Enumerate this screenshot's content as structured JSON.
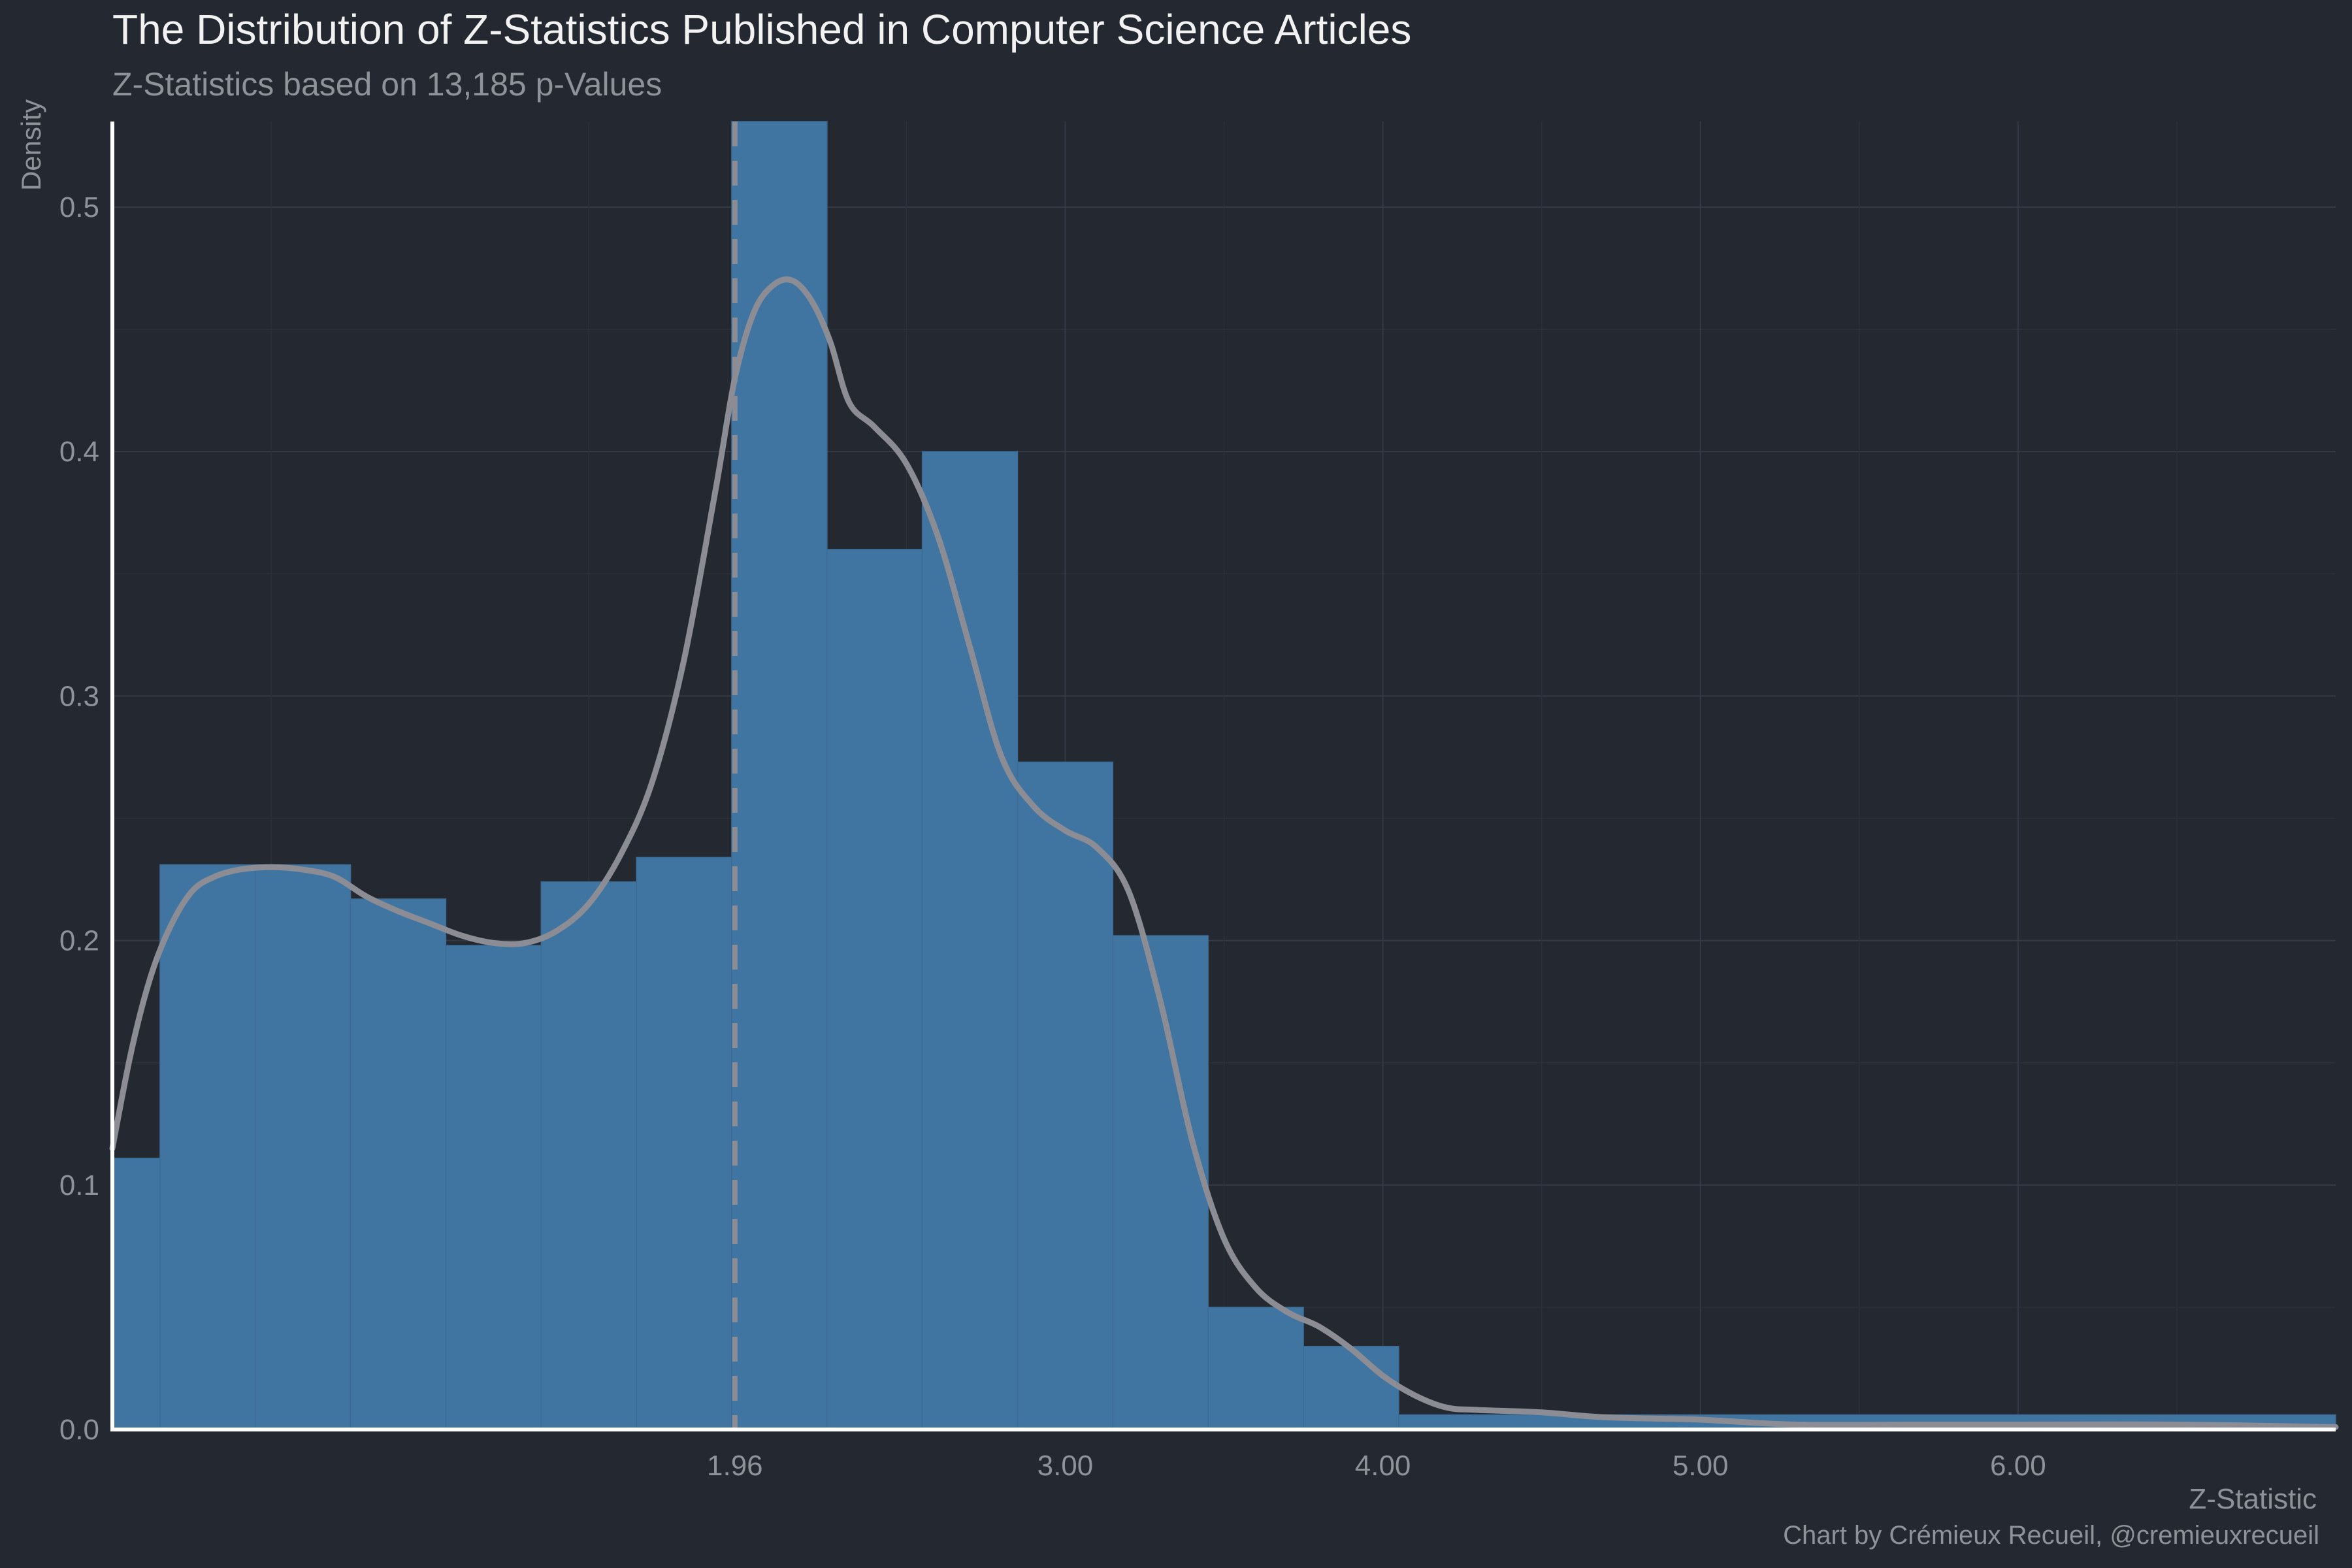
{
  "chart_data": {
    "type": "bar",
    "title": "The Distribution of Z-Statistics Published in Computer Science Articles",
    "subtitle": "Z-Statistics based on 13,185 p-Values",
    "xlabel": "Z-Statistic",
    "ylabel": "Density",
    "caption": "Chart by Crémieux Recueil, @cremieuxrecueil",
    "xlim": [
      0.0,
      7.0
    ],
    "ylim": [
      0.0,
      0.535
    ],
    "x_ticks": [
      {
        "value": 1.96,
        "label": "1.96"
      },
      {
        "value": 3.0,
        "label": "3.00"
      },
      {
        "value": 4.0,
        "label": "4.00"
      },
      {
        "value": 5.0,
        "label": "5.00"
      },
      {
        "value": 6.0,
        "label": "6.00"
      }
    ],
    "y_ticks": [
      {
        "value": 0.0,
        "label": "0.0"
      },
      {
        "value": 0.1,
        "label": "0.1"
      },
      {
        "value": 0.2,
        "label": "0.2"
      },
      {
        "value": 0.3,
        "label": "0.3"
      },
      {
        "value": 0.4,
        "label": "0.4"
      },
      {
        "value": 0.5,
        "label": "0.5"
      }
    ],
    "histogram": {
      "bins": [
        {
          "x0": 0.0,
          "x1": 0.15,
          "density": 0.111
        },
        {
          "x0": 0.15,
          "x1": 0.45,
          "density": 0.231
        },
        {
          "x0": 0.45,
          "x1": 0.75,
          "density": 0.231
        },
        {
          "x0": 0.75,
          "x1": 1.05,
          "density": 0.217
        },
        {
          "x0": 1.05,
          "x1": 1.35,
          "density": 0.198
        },
        {
          "x0": 1.35,
          "x1": 1.65,
          "density": 0.224
        },
        {
          "x0": 1.65,
          "x1": 1.95,
          "density": 0.234
        },
        {
          "x0": 1.95,
          "x1": 2.25,
          "density": 0.535
        },
        {
          "x0": 2.25,
          "x1": 2.55,
          "density": 0.36
        },
        {
          "x0": 2.55,
          "x1": 2.85,
          "density": 0.4
        },
        {
          "x0": 2.85,
          "x1": 3.15,
          "density": 0.273
        },
        {
          "x0": 3.15,
          "x1": 3.45,
          "density": 0.202
        },
        {
          "x0": 3.45,
          "x1": 3.75,
          "density": 0.05
        },
        {
          "x0": 3.75,
          "x1": 4.05,
          "density": 0.034
        },
        {
          "x0": 4.05,
          "x1": 7.0,
          "density": 0.006
        }
      ]
    },
    "density_curve": {
      "x": [
        0.0,
        0.06,
        0.12,
        0.18,
        0.25,
        0.32,
        0.4,
        0.5,
        0.6,
        0.7,
        0.8,
        0.9,
        1.0,
        1.1,
        1.2,
        1.3,
        1.4,
        1.5,
        1.6,
        1.7,
        1.8,
        1.9,
        1.96,
        2.02,
        2.08,
        2.14,
        2.2,
        2.26,
        2.32,
        2.4,
        2.5,
        2.6,
        2.7,
        2.8,
        2.9,
        3.0,
        3.1,
        3.2,
        3.3,
        3.4,
        3.5,
        3.6,
        3.7,
        3.8,
        3.9,
        4.0,
        4.1,
        4.2,
        4.3,
        4.5,
        4.7,
        5.0,
        5.3,
        5.7,
        6.0,
        6.5,
        7.0
      ],
      "y": [
        0.115,
        0.155,
        0.185,
        0.205,
        0.22,
        0.226,
        0.229,
        0.23,
        0.229,
        0.226,
        0.218,
        0.212,
        0.207,
        0.202,
        0.199,
        0.199,
        0.204,
        0.215,
        0.235,
        0.265,
        0.315,
        0.385,
        0.43,
        0.457,
        0.468,
        0.47,
        0.462,
        0.445,
        0.42,
        0.41,
        0.395,
        0.365,
        0.32,
        0.275,
        0.255,
        0.245,
        0.238,
        0.22,
        0.175,
        0.118,
        0.078,
        0.058,
        0.048,
        0.042,
        0.033,
        0.022,
        0.014,
        0.009,
        0.008,
        0.007,
        0.005,
        0.004,
        0.002,
        0.002,
        0.002,
        0.002,
        0.001
      ]
    },
    "reference_line": {
      "x": 1.96,
      "style": "dashed"
    },
    "grid": true,
    "colors": {
      "background": "#232831",
      "bar": "#4175a1",
      "curve": "#8c8d94",
      "reference_line": "#8c8d94",
      "axis": "#ffffff",
      "grid": "#343a45"
    }
  }
}
